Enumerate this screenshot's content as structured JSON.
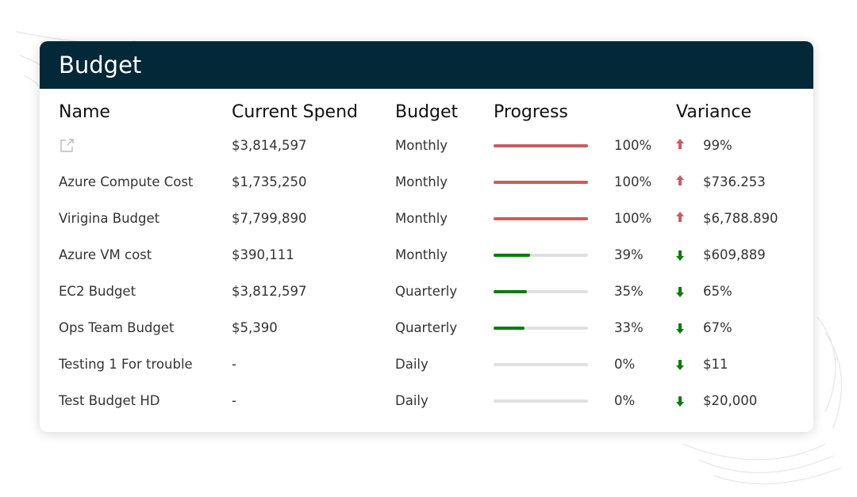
{
  "title": "Budget",
  "columns": [
    "Name",
    "Current Spend",
    "Budget",
    "Progress",
    "Variance"
  ],
  "colors": {
    "header_bg": "#032838",
    "over": "#cd5c5c",
    "under": "#0a7d0a",
    "track": "#e0e0e0"
  },
  "rows": [
    {
      "name": "",
      "name_icon": "external-link-icon",
      "spend": "$3,814,597",
      "budget": "Monthly",
      "progress": 100,
      "pct": "100%",
      "trend": "up",
      "variance": "99%"
    },
    {
      "name": "Azure Compute Cost",
      "spend": "$1,735,250",
      "budget": "Monthly",
      "progress": 100,
      "pct": "100%",
      "trend": "up",
      "variance": "$736.253"
    },
    {
      "name": "Virigina Budget",
      "spend": "$7,799,890",
      "budget": "Monthly",
      "progress": 100,
      "pct": "100%",
      "trend": "up",
      "variance": "$6,788.890"
    },
    {
      "name": "Azure VM cost",
      "spend": "$390,111",
      "budget": "Monthly",
      "progress": 39,
      "pct": "39%",
      "trend": "down",
      "variance": "$609,889"
    },
    {
      "name": "EC2 Budget",
      "spend": "$3,812,597",
      "budget": "Quarterly",
      "progress": 35,
      "pct": "35%",
      "trend": "down",
      "variance": "65%"
    },
    {
      "name": "Ops Team Budget",
      "spend": "$5,390",
      "budget": "Quarterly",
      "progress": 33,
      "pct": "33%",
      "trend": "down",
      "variance": "67%"
    },
    {
      "name": "Testing 1 For trouble",
      "spend": "-",
      "budget": "Daily",
      "progress": 0,
      "pct": "0%",
      "trend": "down",
      "variance": "$11"
    },
    {
      "name": "Test Budget HD",
      "spend": "-",
      "budget": "Daily",
      "progress": 0,
      "pct": "0%",
      "trend": "down",
      "variance": "$20,000"
    }
  ]
}
